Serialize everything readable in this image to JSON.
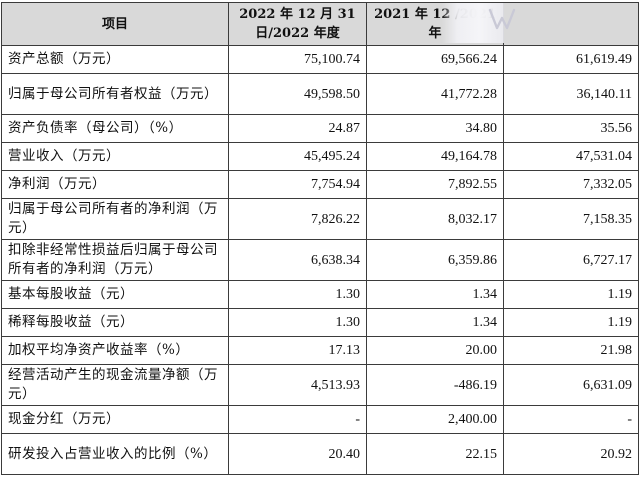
{
  "table": {
    "headers": {
      "item": "项目",
      "col2022": "2022 年 12 月 31 日/2022 年度",
      "col2021": "2021 年 12 /2021 年",
      "col2020": ""
    },
    "rows": [
      {
        "label": "资产总额（万元）",
        "v2022": "75,100.74",
        "v2021": "69,566.24",
        "v2020": "61,619.49"
      },
      {
        "label": "归属于母公司所有者权益（万元）",
        "v2022": "49,598.50",
        "v2021": "41,772.28",
        "v2020": "36,140.11"
      },
      {
        "label": "资产负债率（母公司）（%）",
        "v2022": "24.87",
        "v2021": "34.80",
        "v2020": "35.56"
      },
      {
        "label": "营业收入（万元）",
        "v2022": "45,495.24",
        "v2021": "49,164.78",
        "v2020": "47,531.04"
      },
      {
        "label": "净利润（万元）",
        "v2022": "7,754.94",
        "v2021": "7,892.55",
        "v2020": "7,332.05"
      },
      {
        "label": "归属于母公司所有者的净利润（万元）",
        "v2022": "7,826.22",
        "v2021": "8,032.17",
        "v2020": "7,158.35"
      },
      {
        "label": "扣除非经常性损益后归属于母公司所有者的净利润（万元）",
        "v2022": "6,638.34",
        "v2021": "6,359.86",
        "v2020": "6,727.17"
      },
      {
        "label": "基本每股收益（元）",
        "v2022": "1.30",
        "v2021": "1.34",
        "v2020": "1.19"
      },
      {
        "label": "稀释每股收益（元）",
        "v2022": "1.30",
        "v2021": "1.34",
        "v2020": "1.19"
      },
      {
        "label": "加权平均净资产收益率（%）",
        "v2022": "17.13",
        "v2021": "20.00",
        "v2020": "21.98"
      },
      {
        "label": "经营活动产生的现金流量净额（万元）",
        "v2022": "4,513.93",
        "v2021": "-486.19",
        "v2020": "6,631.09"
      },
      {
        "label": "现金分红（万元）",
        "v2022": "-",
        "v2021": "2,400.00",
        "v2020": "-"
      },
      {
        "label": "研发投入占营业收入的比例（%）",
        "v2022": "20.40",
        "v2021": "22.15",
        "v2020": "20.92"
      }
    ]
  },
  "overlay": {
    "icon": "brand-logo-icon",
    "accent": "#c9c9d6"
  }
}
